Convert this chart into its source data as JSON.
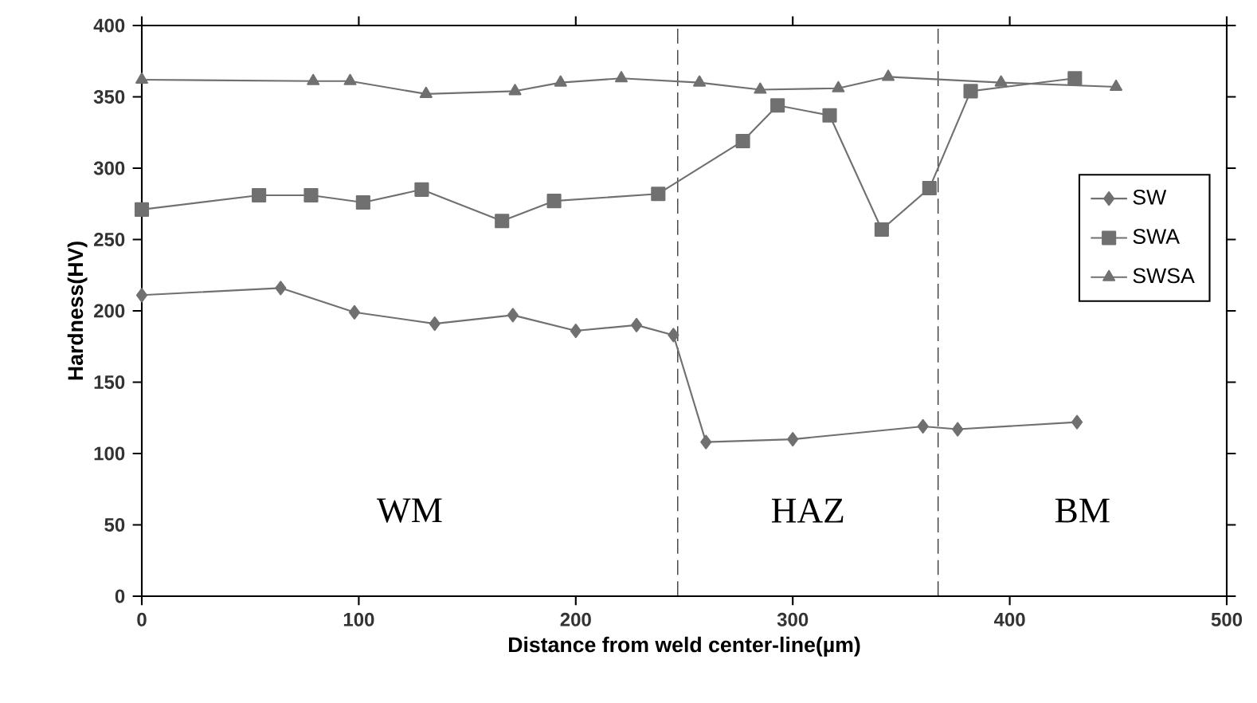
{
  "chart_data": {
    "type": "line",
    "xlabel": "Distance from weld center-line(µm)",
    "ylabel": "Hardness(HV)",
    "xlim": [
      0,
      500
    ],
    "xticks": [
      0,
      100,
      200,
      300,
      400,
      500
    ],
    "ylim": [
      0,
      400
    ],
    "yticks": [
      0,
      50,
      100,
      150,
      200,
      250,
      300,
      350,
      400
    ],
    "grid": false,
    "legend": "right",
    "series": [
      {
        "name": "SW",
        "color": "#707070",
        "marker": "diamond",
        "x": [
          0,
          64,
          98,
          135,
          171,
          200,
          228,
          245,
          260,
          300,
          360,
          376,
          431
        ],
        "values": [
          211,
          216,
          199,
          191,
          197,
          186,
          190,
          183,
          108,
          110,
          119,
          117,
          122
        ]
      },
      {
        "name": "SWA",
        "color": "#707070",
        "marker": "square",
        "x": [
          0,
          54,
          78,
          102,
          129,
          166,
          190,
          238,
          277,
          293,
          317,
          341,
          363,
          382,
          430
        ],
        "values": [
          271,
          281,
          281,
          276,
          285,
          263,
          277,
          282,
          319,
          344,
          337,
          257,
          286,
          354,
          363
        ]
      },
      {
        "name": "SWSA",
        "color": "#707070",
        "marker": "triangle",
        "x": [
          0,
          79,
          96,
          131,
          172,
          193,
          221,
          257,
          285,
          321,
          344,
          396,
          449
        ],
        "values": [
          362,
          361,
          361,
          352,
          354,
          360,
          363,
          360,
          355,
          356,
          364,
          360,
          357
        ]
      }
    ],
    "ref_lines": [
      {
        "axis": "x",
        "value": 247,
        "color": "#000000",
        "line_style": "dashed"
      },
      {
        "axis": "x",
        "value": 367,
        "color": "#000000",
        "line_style": "dashed"
      }
    ],
    "annotations": [
      "WM",
      "HAZ",
      "BM"
    ]
  }
}
